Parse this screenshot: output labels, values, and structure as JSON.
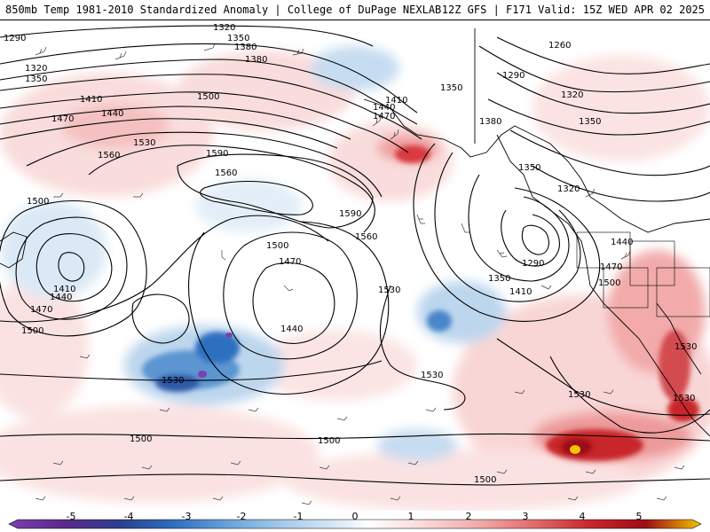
{
  "header": {
    "title_left": "850mb Temp 1981-2010 Standardized Anomaly | College of DuPage NEXLAB",
    "title_right": "12Z GFS | F171 Valid: 15Z WED APR 02 2025"
  },
  "colorbar": {
    "ticks": [
      "-5",
      "-4",
      "-3",
      "-2",
      "-1",
      "0",
      "1",
      "2",
      "3",
      "4",
      "5"
    ],
    "colors": [
      "#7b3fb0",
      "#2c3f8f",
      "#2f6fc0",
      "#6aa6db",
      "#a9cbea",
      "#ddebf7",
      "#ffffff",
      "#f9d8d8",
      "#f2a9a9",
      "#e06a6a",
      "#c8262b",
      "#9b0d15",
      "#f5c400"
    ]
  },
  "contour_labels": [
    "1290",
    "1320",
    "1350",
    "1380",
    "1290",
    "1320",
    "1350",
    "1380",
    "1410",
    "1440",
    "1470",
    "1500",
    "1530",
    "1560",
    "1590",
    "1590",
    "1560",
    "1500",
    "1560",
    "1530",
    "1410",
    "1440",
    "1470",
    "1500",
    "1470",
    "1500",
    "1440",
    "1530",
    "1530",
    "1530",
    "1500",
    "1500",
    "1500",
    "1260",
    "1290",
    "1320",
    "1350",
    "1380",
    "1350",
    "1320",
    "1290",
    "1350",
    "1410",
    "1440",
    "1470",
    "1500",
    "1530",
    "1530",
    "1410",
    "1440",
    "1470",
    "1380",
    "1350"
  ]
}
